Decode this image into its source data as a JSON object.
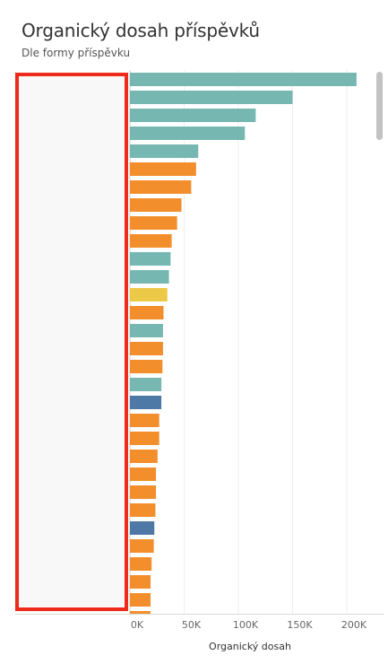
{
  "header": {
    "title": "Organický dosah příspěvků",
    "subtitle": "Dle formy příspěvku"
  },
  "chart_data": {
    "type": "bar",
    "orientation": "horizontal",
    "title": "Organický dosah příspěvků",
    "subtitle": "Dle formy příspěvku",
    "xlabel": "Organický dosah",
    "ylabel": "",
    "xlim": [
      0,
      220000
    ],
    "x_ticks": [
      0,
      50000,
      100000,
      150000,
      200000
    ],
    "x_tick_labels": [
      "0K",
      "50K",
      "100K",
      "150K",
      "200K"
    ],
    "grid": true,
    "legend": "none",
    "colors": {
      "teal": "#76b7b2",
      "orange": "#f28e2b",
      "yellow": "#edc948",
      "blue": "#4e79a7"
    },
    "bars": [
      {
        "value": 209000,
        "color": "teal"
      },
      {
        "value": 150000,
        "color": "teal"
      },
      {
        "value": 116000,
        "color": "teal"
      },
      {
        "value": 106000,
        "color": "teal"
      },
      {
        "value": 63000,
        "color": "teal"
      },
      {
        "value": 61000,
        "color": "orange"
      },
      {
        "value": 56500,
        "color": "orange"
      },
      {
        "value": 47500,
        "color": "orange"
      },
      {
        "value": 43500,
        "color": "orange"
      },
      {
        "value": 38500,
        "color": "orange"
      },
      {
        "value": 37500,
        "color": "teal"
      },
      {
        "value": 36000,
        "color": "teal"
      },
      {
        "value": 34500,
        "color": "yellow"
      },
      {
        "value": 31000,
        "color": "orange"
      },
      {
        "value": 30500,
        "color": "teal"
      },
      {
        "value": 30500,
        "color": "orange"
      },
      {
        "value": 30000,
        "color": "orange"
      },
      {
        "value": 29000,
        "color": "teal"
      },
      {
        "value": 29000,
        "color": "blue"
      },
      {
        "value": 27000,
        "color": "orange"
      },
      {
        "value": 27000,
        "color": "orange"
      },
      {
        "value": 25500,
        "color": "orange"
      },
      {
        "value": 24000,
        "color": "orange"
      },
      {
        "value": 24000,
        "color": "orange"
      },
      {
        "value": 23500,
        "color": "orange"
      },
      {
        "value": 22500,
        "color": "blue"
      },
      {
        "value": 22000,
        "color": "orange"
      },
      {
        "value": 20000,
        "color": "orange"
      },
      {
        "value": 19000,
        "color": "orange"
      },
      {
        "value": 19000,
        "color": "orange"
      },
      {
        "value": 19000,
        "color": "orange"
      }
    ]
  }
}
